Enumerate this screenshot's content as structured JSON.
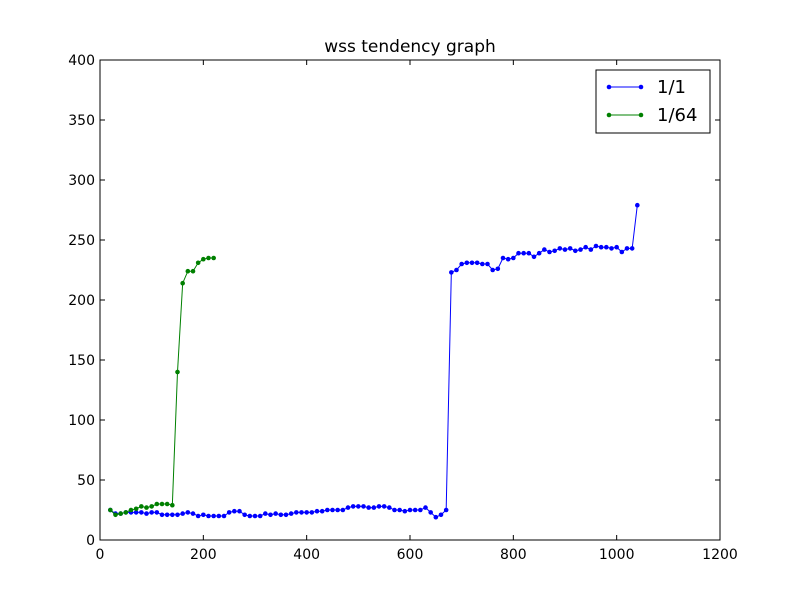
{
  "chart_data": {
    "type": "line",
    "title": "wss tendency graph",
    "xlabel": "",
    "ylabel": "",
    "xlim": [
      0,
      1200
    ],
    "ylim": [
      0,
      400
    ],
    "xticks": [
      0,
      200,
      400,
      600,
      800,
      1000,
      1200
    ],
    "yticks": [
      0,
      50,
      100,
      150,
      200,
      250,
      300,
      350,
      400
    ],
    "grid": false,
    "legend_position": "top-right",
    "series": [
      {
        "name": "1/1",
        "color": "#0000ff",
        "x": [
          20,
          30,
          40,
          50,
          60,
          70,
          80,
          90,
          100,
          110,
          120,
          130,
          140,
          150,
          160,
          170,
          180,
          190,
          200,
          210,
          220,
          230,
          240,
          250,
          260,
          270,
          280,
          290,
          300,
          310,
          320,
          330,
          340,
          350,
          360,
          370,
          380,
          390,
          400,
          410,
          420,
          430,
          440,
          450,
          460,
          470,
          480,
          490,
          500,
          510,
          520,
          530,
          540,
          550,
          560,
          570,
          580,
          590,
          600,
          610,
          620,
          630,
          640,
          650,
          660,
          670,
          680,
          690,
          700,
          710,
          720,
          730,
          740,
          750,
          760,
          770,
          780,
          790,
          800,
          810,
          820,
          830,
          840,
          850,
          860,
          870,
          880,
          890,
          900,
          910,
          920,
          930,
          940,
          950,
          960,
          970,
          980,
          990,
          1000,
          1010,
          1020,
          1030,
          1040
        ],
        "y": [
          25,
          22,
          22,
          23,
          23,
          23,
          23,
          22,
          23,
          23,
          21,
          21,
          21,
          21,
          22,
          23,
          22,
          20,
          21,
          20,
          20,
          20,
          20,
          23,
          24,
          24,
          21,
          20,
          20,
          20,
          22,
          21,
          22,
          21,
          21,
          22,
          23,
          23,
          23,
          23,
          24,
          24,
          25,
          25,
          25,
          25,
          27,
          28,
          28,
          28,
          27,
          27,
          28,
          28,
          27,
          25,
          25,
          24,
          25,
          25,
          25,
          27,
          23,
          19,
          21,
          25,
          223,
          225,
          230,
          231,
          231,
          231,
          230,
          230,
          225,
          226,
          235,
          234,
          235,
          239,
          239,
          239,
          236,
          239,
          242,
          240,
          241,
          243,
          242,
          243,
          241,
          242,
          244,
          242,
          245,
          244,
          244,
          243,
          244,
          240,
          243,
          243,
          279
        ]
      },
      {
        "name": "1/64",
        "color": "#008000",
        "x": [
          20,
          30,
          40,
          50,
          60,
          70,
          80,
          90,
          100,
          110,
          120,
          130,
          140,
          150,
          160,
          170,
          180,
          190,
          200,
          210,
          220
        ],
        "y": [
          25,
          21,
          22,
          23,
          25,
          26,
          28,
          27,
          28,
          30,
          30,
          30,
          29,
          140,
          214,
          224,
          224,
          231,
          234,
          235,
          235
        ]
      }
    ]
  }
}
